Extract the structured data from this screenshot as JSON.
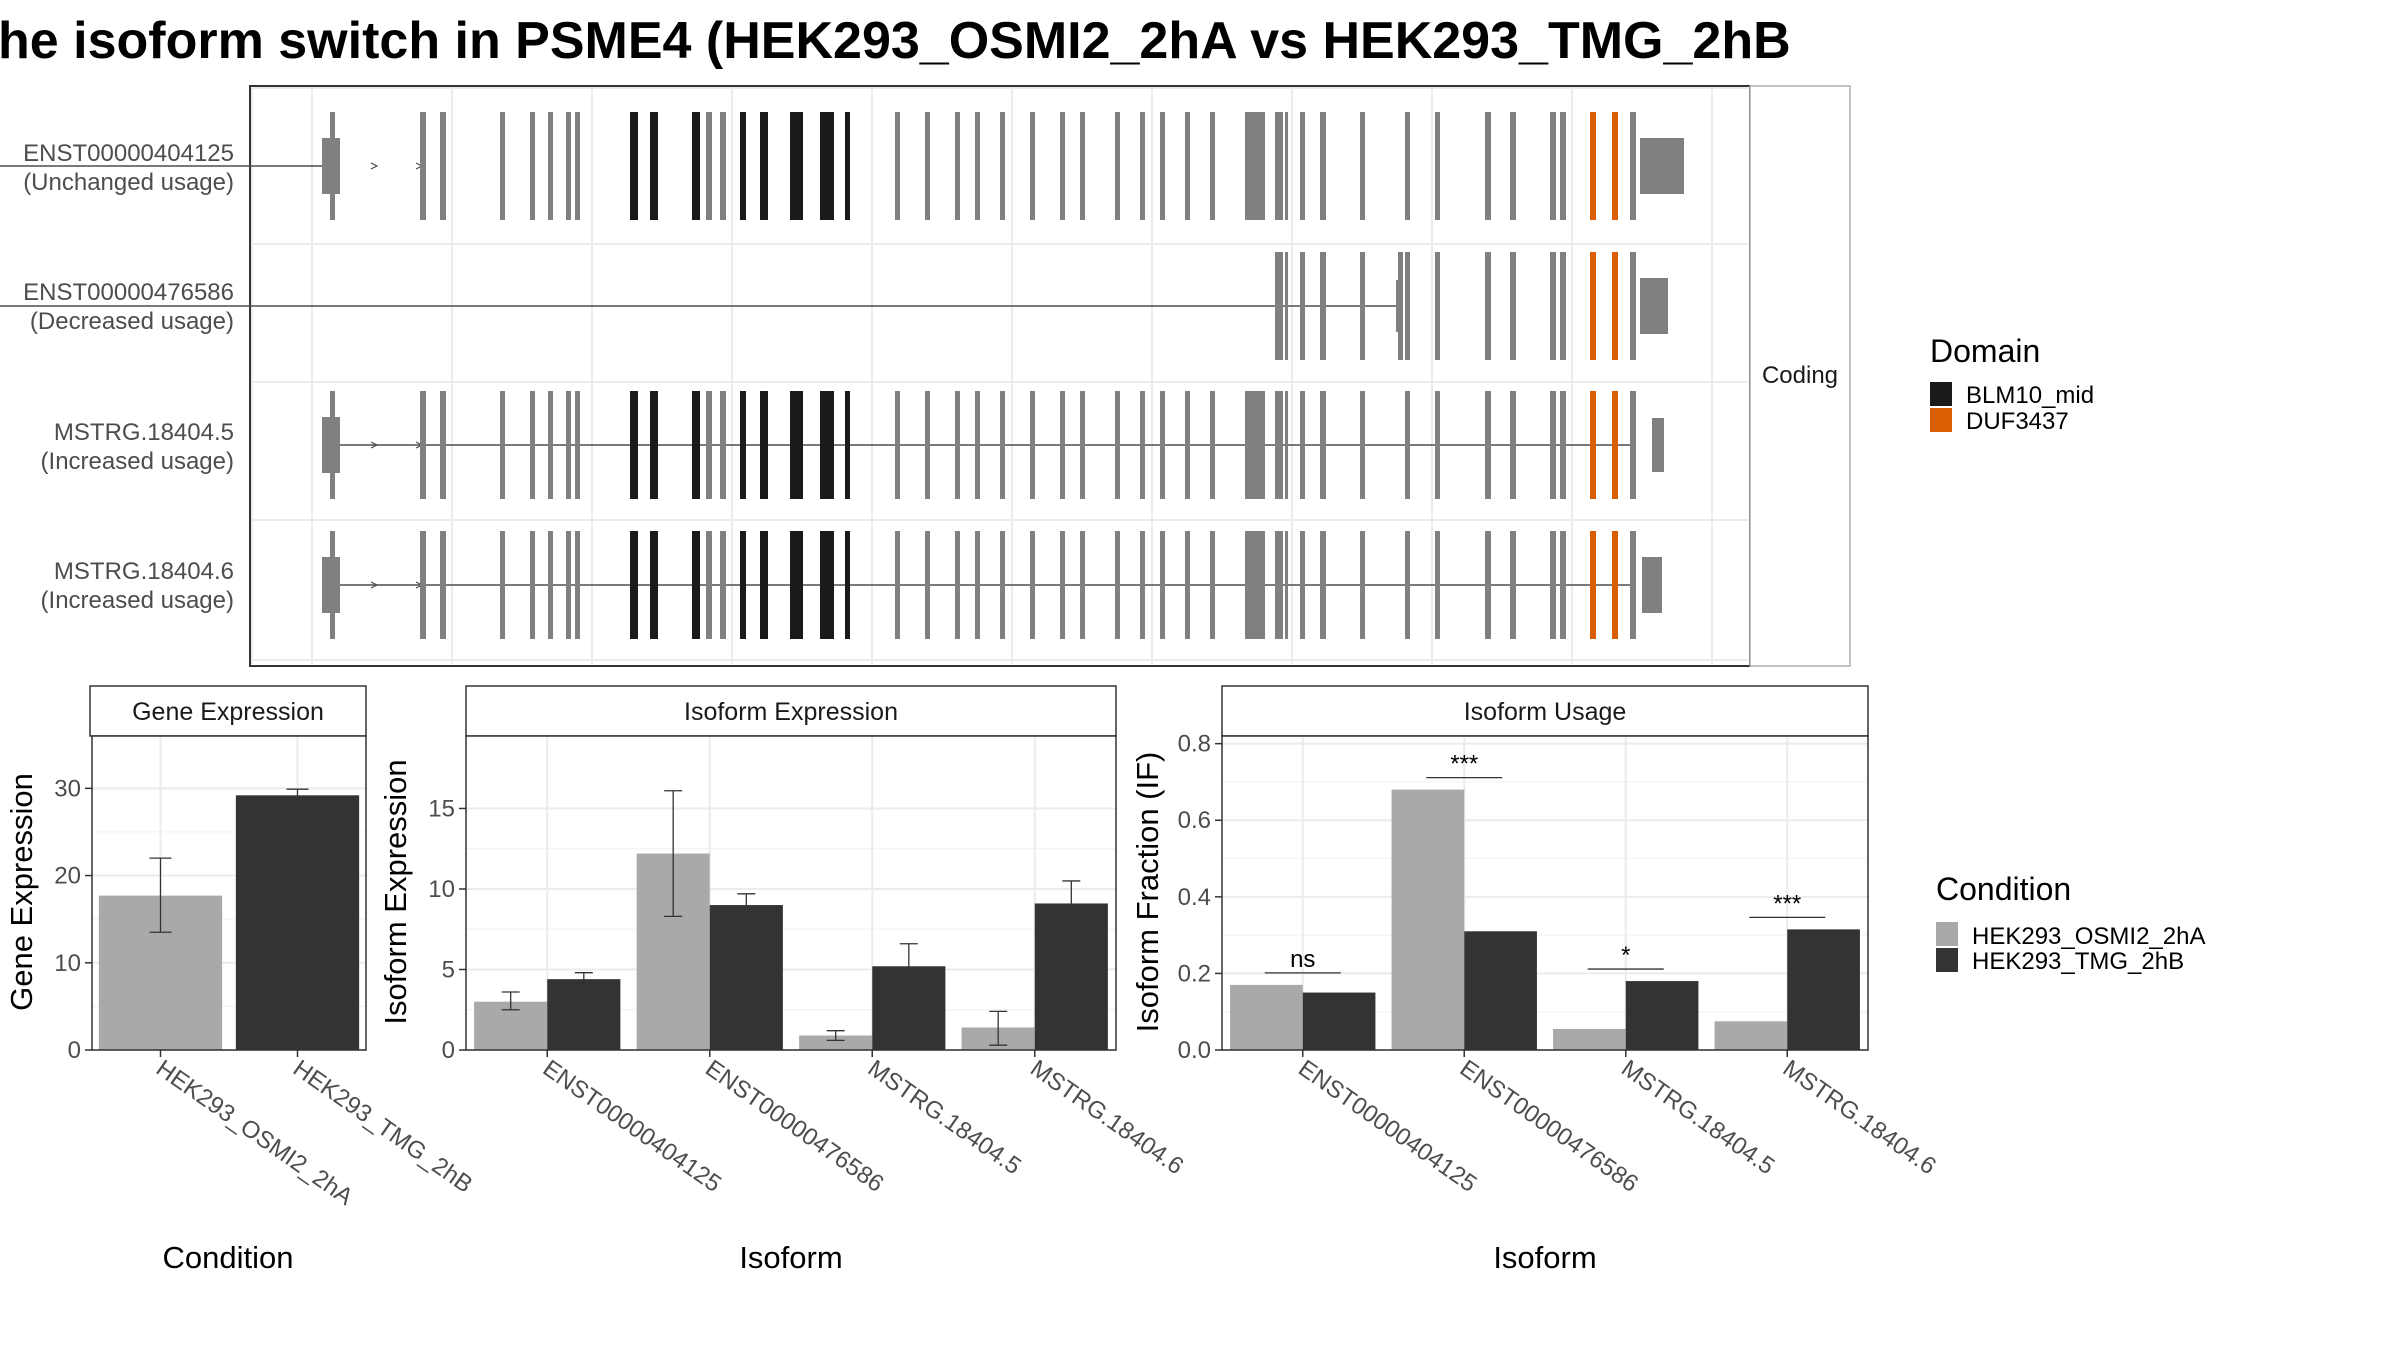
{
  "title": "he isoform switch in PSME4 (HEK293_OSMI2_2hA vs HEK293_TMG_2hB",
  "colors": {
    "exon": "#808080",
    "blm10": "#1a1a1a",
    "duf": "#d95f02",
    "cond_a": "#a9a9a9",
    "cond_b": "#333333",
    "grid": "#ebebeb",
    "panel_border": "#333333",
    "strip_fill": "#ffffff"
  },
  "structure": {
    "strip_label": "Coding",
    "transcripts": [
      {
        "id": "ENST00000404125",
        "status": "(Unchanged usage)",
        "exon_range": [
          0,
          51
        ],
        "extra": "cap5"
      },
      {
        "id": "ENST00000476586",
        "status": "(Decreased usage)",
        "exon_range": [
          34,
          51
        ],
        "extra": "none"
      },
      {
        "id": "MSTRG.18404.5",
        "status": "(Increased usage)",
        "exon_range": [
          0,
          50
        ],
        "extra": "small3"
      },
      {
        "id": "MSTRG.18404.6",
        "status": "(Increased usage)",
        "exon_range": [
          0,
          50
        ],
        "extra": "med3"
      }
    ],
    "legend": {
      "title": "Domain",
      "items": [
        {
          "label": "BLM10_mid",
          "color": "#1a1a1a"
        },
        {
          "label": "DUF3437",
          "color": "#d95f02"
        }
      ]
    }
  },
  "chart_data": [
    {
      "type": "bar",
      "title": "Gene Expression",
      "xlabel": "Condition",
      "ylabel": "Gene Expression",
      "ylim": [
        0,
        36
      ],
      "yticks": [
        0,
        10,
        20,
        30
      ],
      "categories": [
        "HEK293_OSMI2_2hA",
        "HEK293_TMG_2hB"
      ],
      "values": [
        17.7,
        29.2
      ],
      "errors": [
        [
          13.5,
          22.0
        ],
        [
          28.6,
          29.9
        ]
      ]
    },
    {
      "type": "bar",
      "title": "Isoform Expression",
      "xlabel": "Isoform",
      "ylabel": "Isoform Expression",
      "ylim": [
        0,
        19.5
      ],
      "yticks": [
        0,
        5,
        10,
        15
      ],
      "categories": [
        "ENST00000404125",
        "ENST00000476586",
        "MSTRG.18404.5",
        "MSTRG.18404.6"
      ],
      "series": [
        {
          "name": "HEK293_OSMI2_2hA",
          "values": [
            3.0,
            12.2,
            0.9,
            1.4
          ],
          "errors": [
            [
              2.5,
              3.6
            ],
            [
              8.3,
              16.1
            ],
            [
              0.6,
              1.2
            ],
            [
              0.3,
              2.4
            ]
          ]
        },
        {
          "name": "HEK293_TMG_2hB",
          "values": [
            4.4,
            9.0,
            5.2,
            9.1
          ],
          "errors": [
            [
              4.1,
              4.8
            ],
            [
              8.4,
              9.7
            ],
            [
              4.0,
              6.6
            ],
            [
              7.8,
              10.5
            ]
          ]
        }
      ]
    },
    {
      "type": "bar",
      "title": "Isoform Usage",
      "xlabel": "Isoform",
      "ylabel": "Isoform Fraction (IF)",
      "ylim": [
        0,
        0.82
      ],
      "yticks": [
        0,
        0.2,
        0.4,
        0.6,
        0.8
      ],
      "ytick_labels": [
        "0.0",
        "0.2",
        "0.4",
        "0.6",
        "0.8"
      ],
      "categories": [
        "ENST00000404125",
        "ENST00000476586",
        "MSTRG.18404.5",
        "MSTRG.18404.6"
      ],
      "series": [
        {
          "name": "HEK293_OSMI2_2hA",
          "values": [
            0.17,
            0.68,
            0.055,
            0.075
          ]
        },
        {
          "name": "HEK293_TMG_2hB",
          "values": [
            0.15,
            0.31,
            0.18,
            0.315
          ]
        }
      ],
      "significance": [
        "ns",
        "***",
        "*",
        "***"
      ]
    }
  ],
  "condition_legend": {
    "title": "Condition",
    "items": [
      {
        "label": "HEK293_OSMI2_2hA",
        "color": "#a9a9a9"
      },
      {
        "label": "HEK293_TMG_2hB",
        "color": "#333333"
      }
    ]
  }
}
